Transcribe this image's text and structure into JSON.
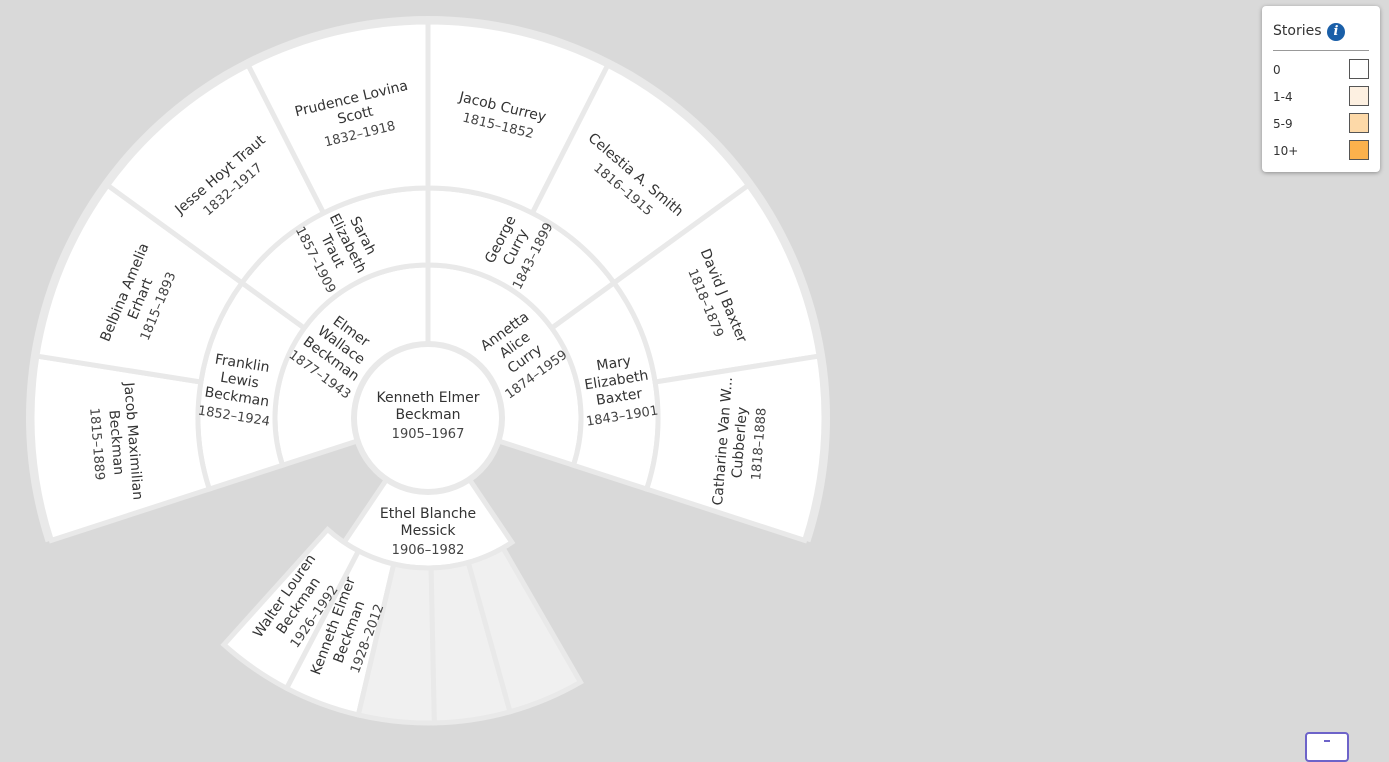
{
  "tree": {
    "root": {
      "name": "Kenneth Elmer Beckman",
      "dates": "1905–1967"
    },
    "parents": [
      {
        "name": "Elmer Wallace Beckman",
        "dates": "1877–1943"
      },
      {
        "name": "Annetta Alice Curry",
        "dates": "1874–1959"
      }
    ],
    "grandparents": [
      {
        "name": "Franklin Lewis Beckman",
        "dates": "1852–1924"
      },
      {
        "name": "Sarah Elizabeth Traut",
        "dates": "1857–1909"
      },
      {
        "name": "George Curry",
        "dates": "1843–1899"
      },
      {
        "name": "Mary Elizabeth Baxter",
        "dates": "1843–1901"
      }
    ],
    "great_grandparents": [
      {
        "name": "Jacob Maximilian Beckman",
        "dates": "1815–1889"
      },
      {
        "name": "Belbina Amelia Erhart",
        "dates": "1815–1893"
      },
      {
        "name": "Jesse Hoyt Traut",
        "dates": "1832–1917"
      },
      {
        "name": "Prudence Lovina Scott",
        "dates": "1832–1918"
      },
      {
        "name": "Jacob Currey",
        "dates": "1815–1852"
      },
      {
        "name": "Celestia A. Smith",
        "dates": "1816–1915"
      },
      {
        "name": "David J Baxter",
        "dates": "1818–1879"
      },
      {
        "name": "Catharine Van W... Cubberley",
        "dates": "1818–1888"
      }
    ],
    "spouse": {
      "name": "Ethel Blanche Messick",
      "dates": "1906–1982"
    },
    "children": [
      {
        "name": "Walter Louren Beckman",
        "dates": "1926–1992"
      },
      {
        "name": "Kenneth Elmer Beckman",
        "dates": "1928–2012"
      },
      {
        "name": "",
        "dates": ""
      },
      {
        "name": "",
        "dates": ""
      },
      {
        "name": "",
        "dates": ""
      }
    ]
  },
  "legend": {
    "title": "Stories",
    "icon": "info-icon",
    "items": [
      {
        "label": "0",
        "color": "#ffffff"
      },
      {
        "label": "1-4",
        "color": "#fdf0e1"
      },
      {
        "label": "5-9",
        "color": "#fdd9a8"
      },
      {
        "label": "10+",
        "color": "#fbb14c"
      }
    ]
  }
}
